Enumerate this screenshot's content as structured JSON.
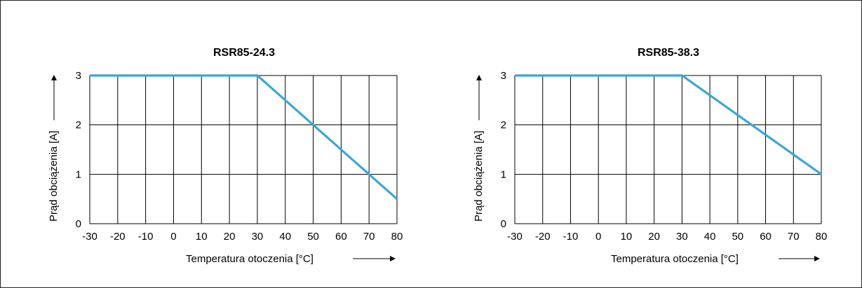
{
  "chart_data": [
    {
      "type": "line",
      "title": "RSR85-24.3",
      "xlabel": "Temperatura otoczenia [°C]",
      "ylabel": "Prąd obciążenia [A]",
      "xlim": [
        -30,
        80
      ],
      "ylim": [
        0,
        3
      ],
      "x_ticks": [
        "-30",
        "-20",
        "-10",
        "0",
        "10",
        "20",
        "30",
        "40",
        "50",
        "60",
        "70",
        "80"
      ],
      "y_ticks": [
        "0",
        "1",
        "2",
        "3"
      ],
      "grid": true,
      "series": [
        {
          "x": [
            -30,
            30,
            80
          ],
          "y": [
            3,
            3,
            0.5
          ]
        }
      ]
    },
    {
      "type": "line",
      "title": "RSR85-38.3",
      "xlabel": "Temperatura otoczenia [°C]",
      "ylabel": "Prąd obciążenia [A]",
      "xlim": [
        -30,
        80
      ],
      "ylim": [
        0,
        3
      ],
      "x_ticks": [
        "-30",
        "-20",
        "-10",
        "0",
        "10",
        "20",
        "30",
        "40",
        "50",
        "60",
        "70",
        "80"
      ],
      "y_ticks": [
        "0",
        "1",
        "2",
        "3"
      ],
      "grid": true,
      "series": [
        {
          "x": [
            -30,
            30,
            80
          ],
          "y": [
            3,
            3,
            1
          ]
        }
      ]
    }
  ],
  "colors": {
    "line": "#3aa6d8",
    "grid": "#000000"
  }
}
